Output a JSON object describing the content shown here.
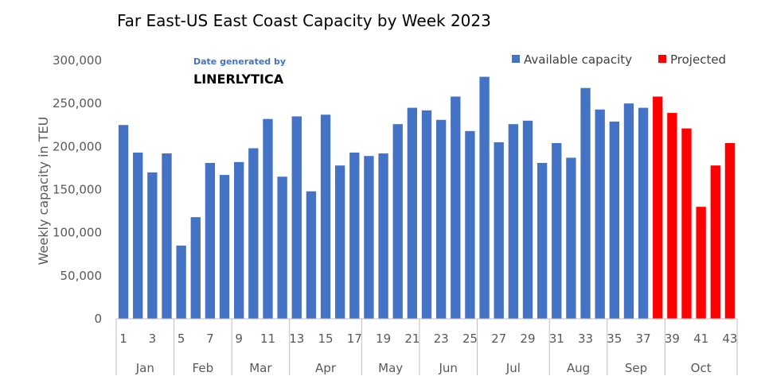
{
  "colors": {
    "available": "#4472C4",
    "projected": "#FF0000",
    "axis": "#BFBFBF",
    "text": "#595959"
  },
  "watermark": {
    "line1": "Date generated by",
    "line2": "LINERLYTICA"
  },
  "chart_data": {
    "type": "bar",
    "title": "Far East-US East Coast Capacity by Week 2023",
    "xlabel": "",
    "ylabel": "Weekly capacity in TEU",
    "ylim": [
      0,
      300000
    ],
    "yticks": [
      0,
      50000,
      100000,
      150000,
      200000,
      250000,
      300000
    ],
    "ytick_labels": [
      "0",
      "50,000",
      "100,000",
      "150,000",
      "200,000",
      "250,000",
      "300,000"
    ],
    "grid": false,
    "legend_position": "top-right",
    "series": [
      {
        "name": "Available capacity",
        "color": "#4472C4"
      },
      {
        "name": "Projected",
        "color": "#FF0000"
      }
    ],
    "weeks": [
      1,
      2,
      3,
      4,
      5,
      6,
      7,
      8,
      9,
      10,
      11,
      12,
      13,
      14,
      15,
      16,
      17,
      18,
      19,
      20,
      21,
      22,
      23,
      24,
      25,
      26,
      27,
      28,
      29,
      30,
      31,
      32,
      33,
      34,
      35,
      36,
      37,
      38,
      39,
      40,
      41,
      42,
      43
    ],
    "week_tick_labels": [
      "1",
      "3",
      "5",
      "7",
      "9",
      "11",
      "13",
      "15",
      "17",
      "19",
      "21",
      "23",
      "25",
      "27",
      "29",
      "31",
      "33",
      "35",
      "37",
      "39",
      "41",
      "43"
    ],
    "values": [
      225000,
      193000,
      170000,
      192000,
      85000,
      118000,
      181000,
      167000,
      182000,
      198000,
      232000,
      165000,
      235000,
      148000,
      237000,
      178000,
      193000,
      189000,
      192000,
      226000,
      245000,
      242000,
      231000,
      258000,
      218000,
      281000,
      205000,
      226000,
      230000,
      181000,
      204000,
      187000,
      268000,
      243000,
      229000,
      250000,
      245000,
      258000,
      239000,
      221000,
      130000,
      178000,
      204000
    ],
    "projected": [
      false,
      false,
      false,
      false,
      false,
      false,
      false,
      false,
      false,
      false,
      false,
      false,
      false,
      false,
      false,
      false,
      false,
      false,
      false,
      false,
      false,
      false,
      false,
      false,
      false,
      false,
      false,
      false,
      false,
      false,
      false,
      false,
      false,
      false,
      false,
      false,
      false,
      true,
      true,
      true,
      true,
      true,
      true
    ],
    "months": [
      {
        "label": "Jan",
        "first_week": 1,
        "last_week": 4
      },
      {
        "label": "Feb",
        "first_week": 5,
        "last_week": 8
      },
      {
        "label": "Mar",
        "first_week": 9,
        "last_week": 12
      },
      {
        "label": "Apr",
        "first_week": 13,
        "last_week": 17
      },
      {
        "label": "May",
        "first_week": 18,
        "last_week": 21
      },
      {
        "label": "Jun",
        "first_week": 22,
        "last_week": 25
      },
      {
        "label": "Jul",
        "first_week": 26,
        "last_week": 30
      },
      {
        "label": "Aug",
        "first_week": 31,
        "last_week": 34
      },
      {
        "label": "Sep",
        "first_week": 35,
        "last_week": 38
      },
      {
        "label": "Oct",
        "first_week": 39,
        "last_week": 43
      }
    ]
  }
}
